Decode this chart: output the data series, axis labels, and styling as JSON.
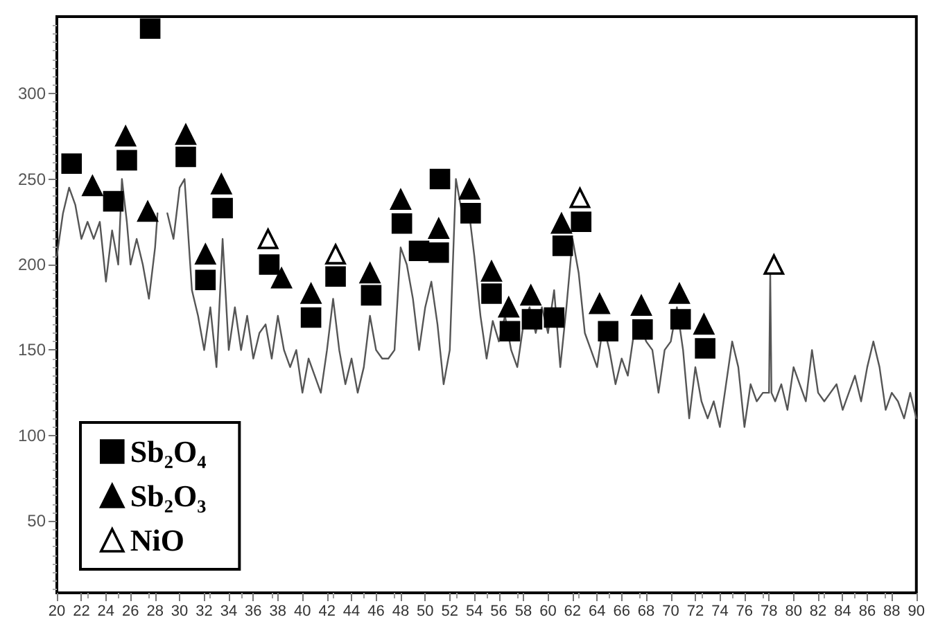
{
  "chart_data": {
    "type": "line",
    "xlim": [
      20,
      90
    ],
    "xticks": [
      20,
      22,
      24,
      26,
      28,
      30,
      32,
      34,
      36,
      38,
      40,
      42,
      44,
      46,
      48,
      50,
      52,
      54,
      56,
      58,
      60,
      62,
      64,
      66,
      68,
      70,
      72,
      74,
      76,
      78,
      80,
      82,
      84,
      86,
      88,
      90
    ],
    "ylim": [
      8,
      345
    ],
    "yticks": [
      50,
      100,
      150,
      200,
      250,
      300
    ],
    "grid": false,
    "legend": "bottom left",
    "series": [
      {
        "color": "#555555",
        "x": [
          20,
          20.5,
          21,
          21.5,
          22,
          22.5,
          23,
          23.5,
          24,
          24.5,
          25,
          25.3,
          25.7,
          26,
          26.5,
          27,
          27.5,
          28,
          28.2,
          28.5,
          28.7,
          29,
          29.5,
          30,
          30.4,
          31,
          31.5,
          32,
          32.5,
          33,
          33.5,
          34,
          34.5,
          35,
          35.5,
          36,
          36.5,
          37,
          37.5,
          38,
          38.5,
          39,
          39.5,
          40,
          40.5,
          41,
          41.5,
          42,
          42.5,
          43,
          43.5,
          44,
          44.5,
          45,
          45.5,
          46,
          46.5,
          47,
          47.5,
          48,
          48.5,
          49,
          49.5,
          50,
          50.5,
          51,
          51.5,
          52,
          52.5,
          53,
          53.5,
          54,
          54.5,
          55,
          55.5,
          56,
          56.5,
          57,
          57.5,
          58,
          58.5,
          59,
          59.5,
          60,
          60.5,
          61,
          61.5,
          62,
          62.5,
          63,
          63.5,
          64,
          64.5,
          65,
          65.5,
          66,
          66.5,
          67,
          67.5,
          68,
          68.5,
          69,
          69.5,
          70,
          70.5,
          71,
          71.5,
          72,
          72.5,
          73,
          73.5,
          74,
          74.5,
          75,
          75.5,
          76,
          76.5,
          77,
          77.5,
          78,
          78.1,
          78.2,
          78.5,
          79,
          79.5,
          80,
          80.5,
          81,
          81.5,
          82,
          82.5,
          83,
          83.5,
          84,
          84.5,
          85,
          85.5,
          86,
          86.5,
          87,
          87.5,
          88,
          88.5,
          89,
          89.5,
          90
        ],
        "values": [
          205,
          230,
          245,
          235,
          215,
          225,
          215,
          225,
          190,
          220,
          200,
          250,
          225,
          200,
          215,
          200,
          180,
          210,
          230,
          null,
          null,
          230,
          215,
          245,
          250,
          185,
          170,
          150,
          175,
          140,
          215,
          150,
          175,
          150,
          170,
          145,
          160,
          165,
          145,
          170,
          150,
          140,
          150,
          125,
          145,
          135,
          125,
          150,
          180,
          150,
          130,
          145,
          125,
          140,
          170,
          150,
          145,
          145,
          150,
          210,
          200,
          180,
          150,
          175,
          190,
          165,
          130,
          150,
          250,
          230,
          235,
          205,
          170,
          145,
          167,
          155,
          170,
          150,
          140,
          165,
          175,
          160,
          175,
          160,
          185,
          140,
          175,
          215,
          195,
          160,
          150,
          140,
          165,
          150,
          130,
          145,
          135,
          160,
          165,
          155,
          150,
          125,
          150,
          155,
          175,
          150,
          110,
          140,
          120,
          110,
          120,
          105,
          130,
          155,
          140,
          105,
          130,
          120,
          125,
          125,
          195,
          125,
          120,
          130,
          115,
          140,
          130,
          120,
          150,
          125,
          120,
          125,
          130,
          115,
          125,
          135,
          120,
          140,
          155,
          140,
          115,
          125,
          120,
          110,
          125,
          110
        ]
      },
      {
        "type": "scatter",
        "name": "Sb₂O₄",
        "color": "#000000",
        "marker": "square",
        "x": [
          21.2,
          24.6,
          25.7,
          27.6,
          30.5,
          32.1,
          33.5,
          37.3,
          40.7,
          42.7,
          45.6,
          48.1,
          49.5,
          51.1,
          51.2,
          53.7,
          55.4,
          56.9,
          58.7,
          60.5,
          61.2,
          62.7,
          64.9,
          67.7,
          70.8,
          72.8
        ],
        "values": [
          259,
          237,
          261,
          338,
          263,
          191,
          233,
          200,
          169,
          193,
          182,
          224,
          208,
          207,
          250,
          230,
          183,
          161,
          168,
          169,
          211,
          225,
          161,
          162,
          168,
          151
        ]
      },
      {
        "type": "scatter",
        "name": "Sb₂O₃",
        "color": "#000000",
        "marker": "triangle",
        "x": [
          22.9,
          25.6,
          27.4,
          30.5,
          32.1,
          33.4,
          38.3,
          40.7,
          45.5,
          48.0,
          51.1,
          53.6,
          55.4,
          56.8,
          58.6,
          61.1,
          64.2,
          67.6,
          70.7,
          72.7
        ],
        "values": [
          246,
          275,
          231,
          276,
          206,
          247,
          192,
          183,
          195,
          238,
          221,
          244,
          196,
          175,
          182,
          224,
          177,
          176,
          183,
          165
        ]
      },
      {
        "type": "scatter",
        "name": "NiO",
        "color": "#ffffff",
        "marker": "triangle",
        "x": [
          37.2,
          42.7,
          62.6,
          78.4
        ],
        "values": [
          215,
          206,
          239,
          200
        ]
      }
    ]
  }
}
